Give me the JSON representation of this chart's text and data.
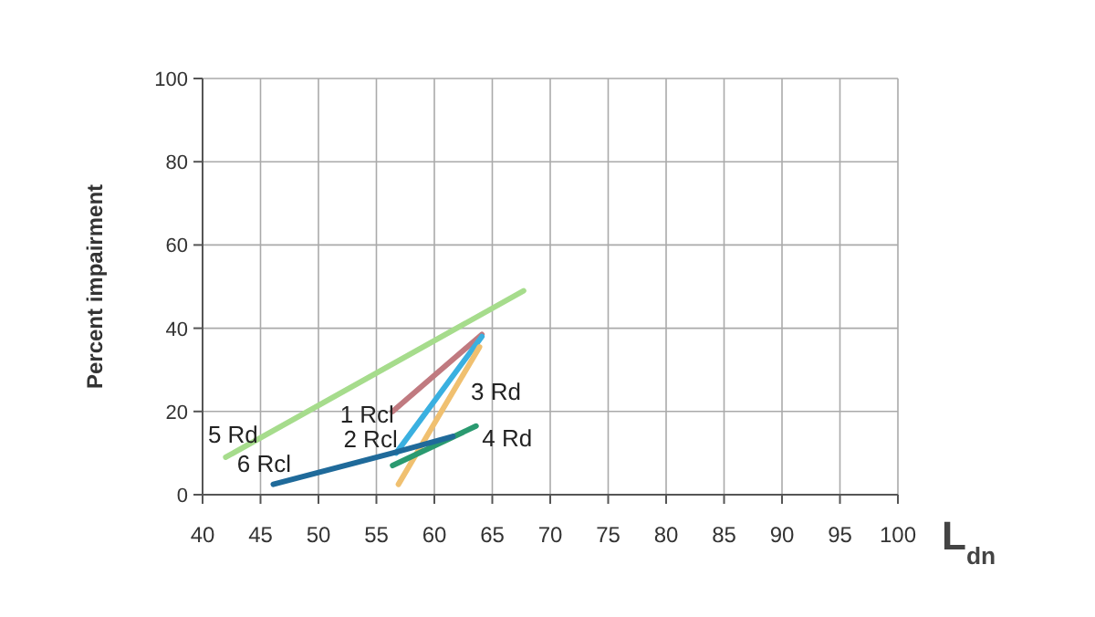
{
  "chart_data": {
    "type": "line",
    "xlabel": "L$_{dn}$",
    "ylabel": "Percent impairment",
    "xlim": [
      40,
      100
    ],
    "xticks": [
      40,
      45,
      50,
      55,
      60,
      65,
      70,
      75,
      80,
      85,
      90,
      95,
      100
    ],
    "ylim": [
      0,
      100
    ],
    "yticks": [
      0,
      20,
      40,
      60,
      80,
      100
    ],
    "grid": true,
    "marker": "none",
    "line_style": "solid",
    "series": [
      {
        "name": "5 Rd",
        "color": "#a6dc8c",
        "x": [
          42,
          67.7
        ],
        "values": [
          9,
          49
        ]
      },
      {
        "name": "1 Rcl",
        "color": "#c07a80",
        "x": [
          56.4,
          64.1
        ],
        "values": [
          20,
          38.5
        ]
      },
      {
        "name": "2 Rcl",
        "color": "#3ab0e0",
        "x": [
          56.7,
          64.1
        ],
        "values": [
          10,
          38
        ]
      },
      {
        "name": "3 Rd",
        "color": "#f0c070",
        "x": [
          56.9,
          63.9
        ],
        "values": [
          2.5,
          35.5
        ]
      },
      {
        "name": "4 Rd",
        "color": "#2a9a70",
        "x": [
          56.4,
          63.6
        ],
        "values": [
          7,
          16.5
        ]
      },
      {
        "name": "6 Rcl",
        "color": "#1f6a9a",
        "x": [
          46.1,
          56.4,
          61.6
        ],
        "values": [
          2.5,
          10,
          14
        ]
      }
    ]
  }
}
